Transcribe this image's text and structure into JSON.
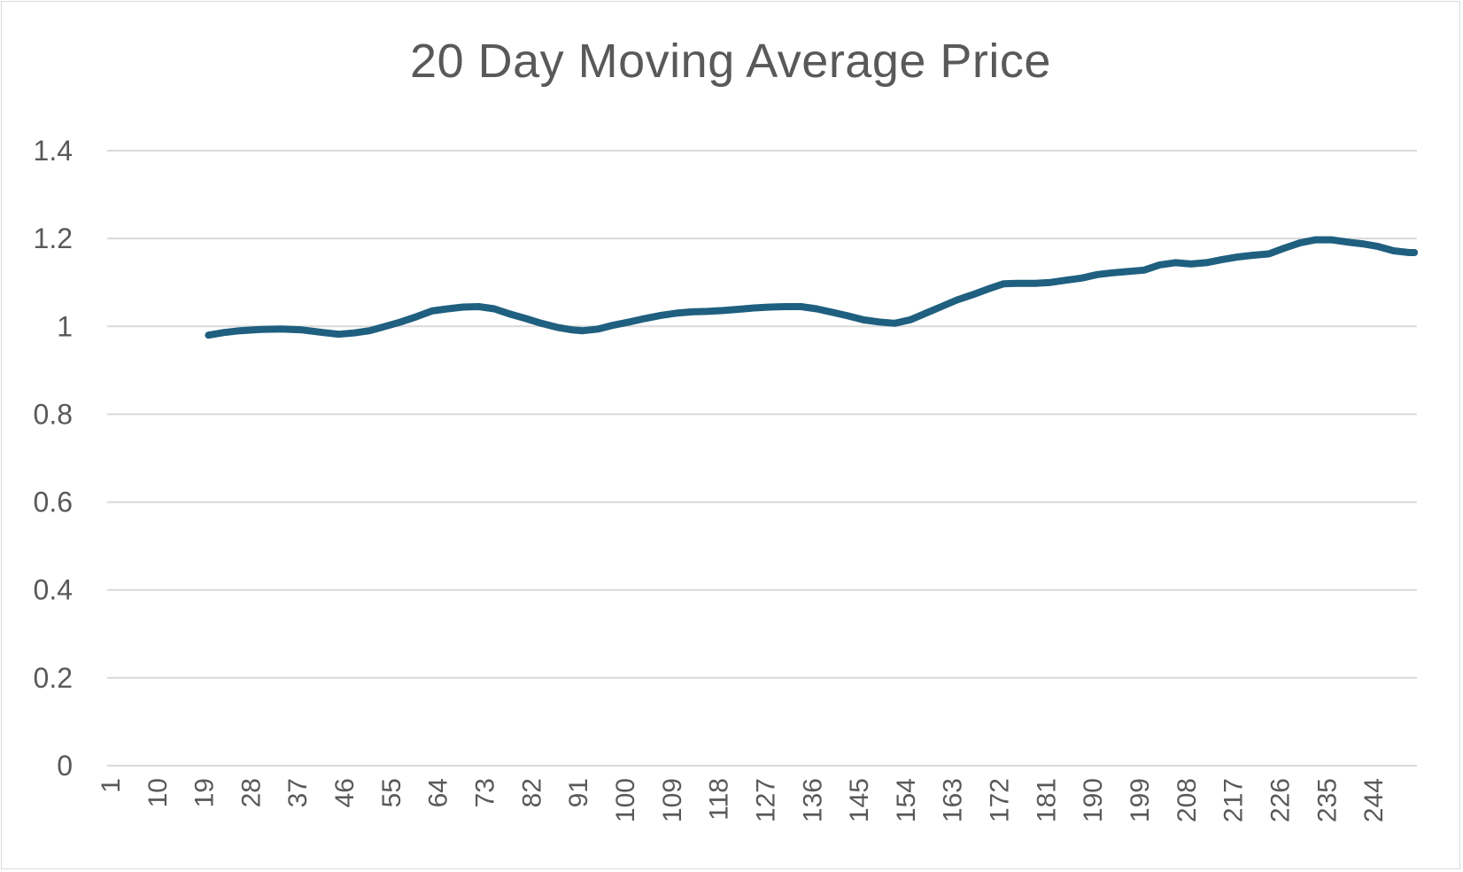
{
  "chart_data": {
    "type": "line",
    "title": "20 Day Moving Average Price",
    "xlabel": "",
    "ylabel": "",
    "ylim": [
      0,
      1.4
    ],
    "yticks": [
      0,
      0.2,
      0.4,
      0.6,
      0.8,
      1,
      1.2,
      1.4
    ],
    "ytick_labels": [
      "0",
      "0.2",
      "0.4",
      "0.6",
      "0.8",
      "1",
      "1.2",
      "1.4"
    ],
    "x_range": [
      1,
      252
    ],
    "xtick_labels": [
      "1",
      "10",
      "19",
      "28",
      "37",
      "46",
      "55",
      "64",
      "73",
      "82",
      "91",
      "100",
      "109",
      "118",
      "127",
      "136",
      "145",
      "154",
      "163",
      "172",
      "181",
      "190",
      "199",
      "208",
      "217",
      "226",
      "235",
      "244"
    ],
    "grid": "horizontal",
    "legend": "none",
    "series": [
      {
        "color": "#1f5f7f",
        "points": [
          [
            20,
            0.98
          ],
          [
            23,
            0.986
          ],
          [
            26,
            0.99
          ],
          [
            30,
            0.993
          ],
          [
            34,
            0.994
          ],
          [
            38,
            0.992
          ],
          [
            42,
            0.986
          ],
          [
            45,
            0.982
          ],
          [
            48,
            0.985
          ],
          [
            51,
            0.99
          ],
          [
            54,
            1.0
          ],
          [
            57,
            1.01
          ],
          [
            60,
            1.022
          ],
          [
            63,
            1.035
          ],
          [
            66,
            1.04
          ],
          [
            69,
            1.044
          ],
          [
            72,
            1.045
          ],
          [
            75,
            1.04
          ],
          [
            78,
            1.028
          ],
          [
            81,
            1.018
          ],
          [
            84,
            1.007
          ],
          [
            87,
            0.998
          ],
          [
            90,
            0.992
          ],
          [
            92,
            0.99
          ],
          [
            95,
            0.994
          ],
          [
            98,
            1.003
          ],
          [
            101,
            1.01
          ],
          [
            104,
            1.018
          ],
          [
            107,
            1.025
          ],
          [
            110,
            1.03
          ],
          [
            113,
            1.033
          ],
          [
            116,
            1.034
          ],
          [
            119,
            1.036
          ],
          [
            122,
            1.039
          ],
          [
            125,
            1.042
          ],
          [
            128,
            1.044
          ],
          [
            131,
            1.045
          ],
          [
            134,
            1.045
          ],
          [
            137,
            1.04
          ],
          [
            140,
            1.032
          ],
          [
            143,
            1.024
          ],
          [
            146,
            1.015
          ],
          [
            149,
            1.01
          ],
          [
            152,
            1.007
          ],
          [
            155,
            1.015
          ],
          [
            158,
            1.03
          ],
          [
            161,
            1.045
          ],
          [
            164,
            1.06
          ],
          [
            167,
            1.072
          ],
          [
            170,
            1.085
          ],
          [
            173,
            1.097
          ],
          [
            176,
            1.098
          ],
          [
            179,
            1.098
          ],
          [
            182,
            1.1
          ],
          [
            185,
            1.105
          ],
          [
            188,
            1.11
          ],
          [
            191,
            1.118
          ],
          [
            194,
            1.122
          ],
          [
            197,
            1.125
          ],
          [
            200,
            1.128
          ],
          [
            203,
            1.14
          ],
          [
            206,
            1.145
          ],
          [
            209,
            1.142
          ],
          [
            212,
            1.145
          ],
          [
            215,
            1.152
          ],
          [
            218,
            1.158
          ],
          [
            221,
            1.162
          ],
          [
            224,
            1.165
          ],
          [
            227,
            1.178
          ],
          [
            230,
            1.19
          ],
          [
            233,
            1.197
          ],
          [
            236,
            1.197
          ],
          [
            239,
            1.192
          ],
          [
            242,
            1.188
          ],
          [
            245,
            1.182
          ],
          [
            248,
            1.172
          ],
          [
            251,
            1.168
          ],
          [
            252,
            1.168
          ]
        ]
      }
    ]
  }
}
